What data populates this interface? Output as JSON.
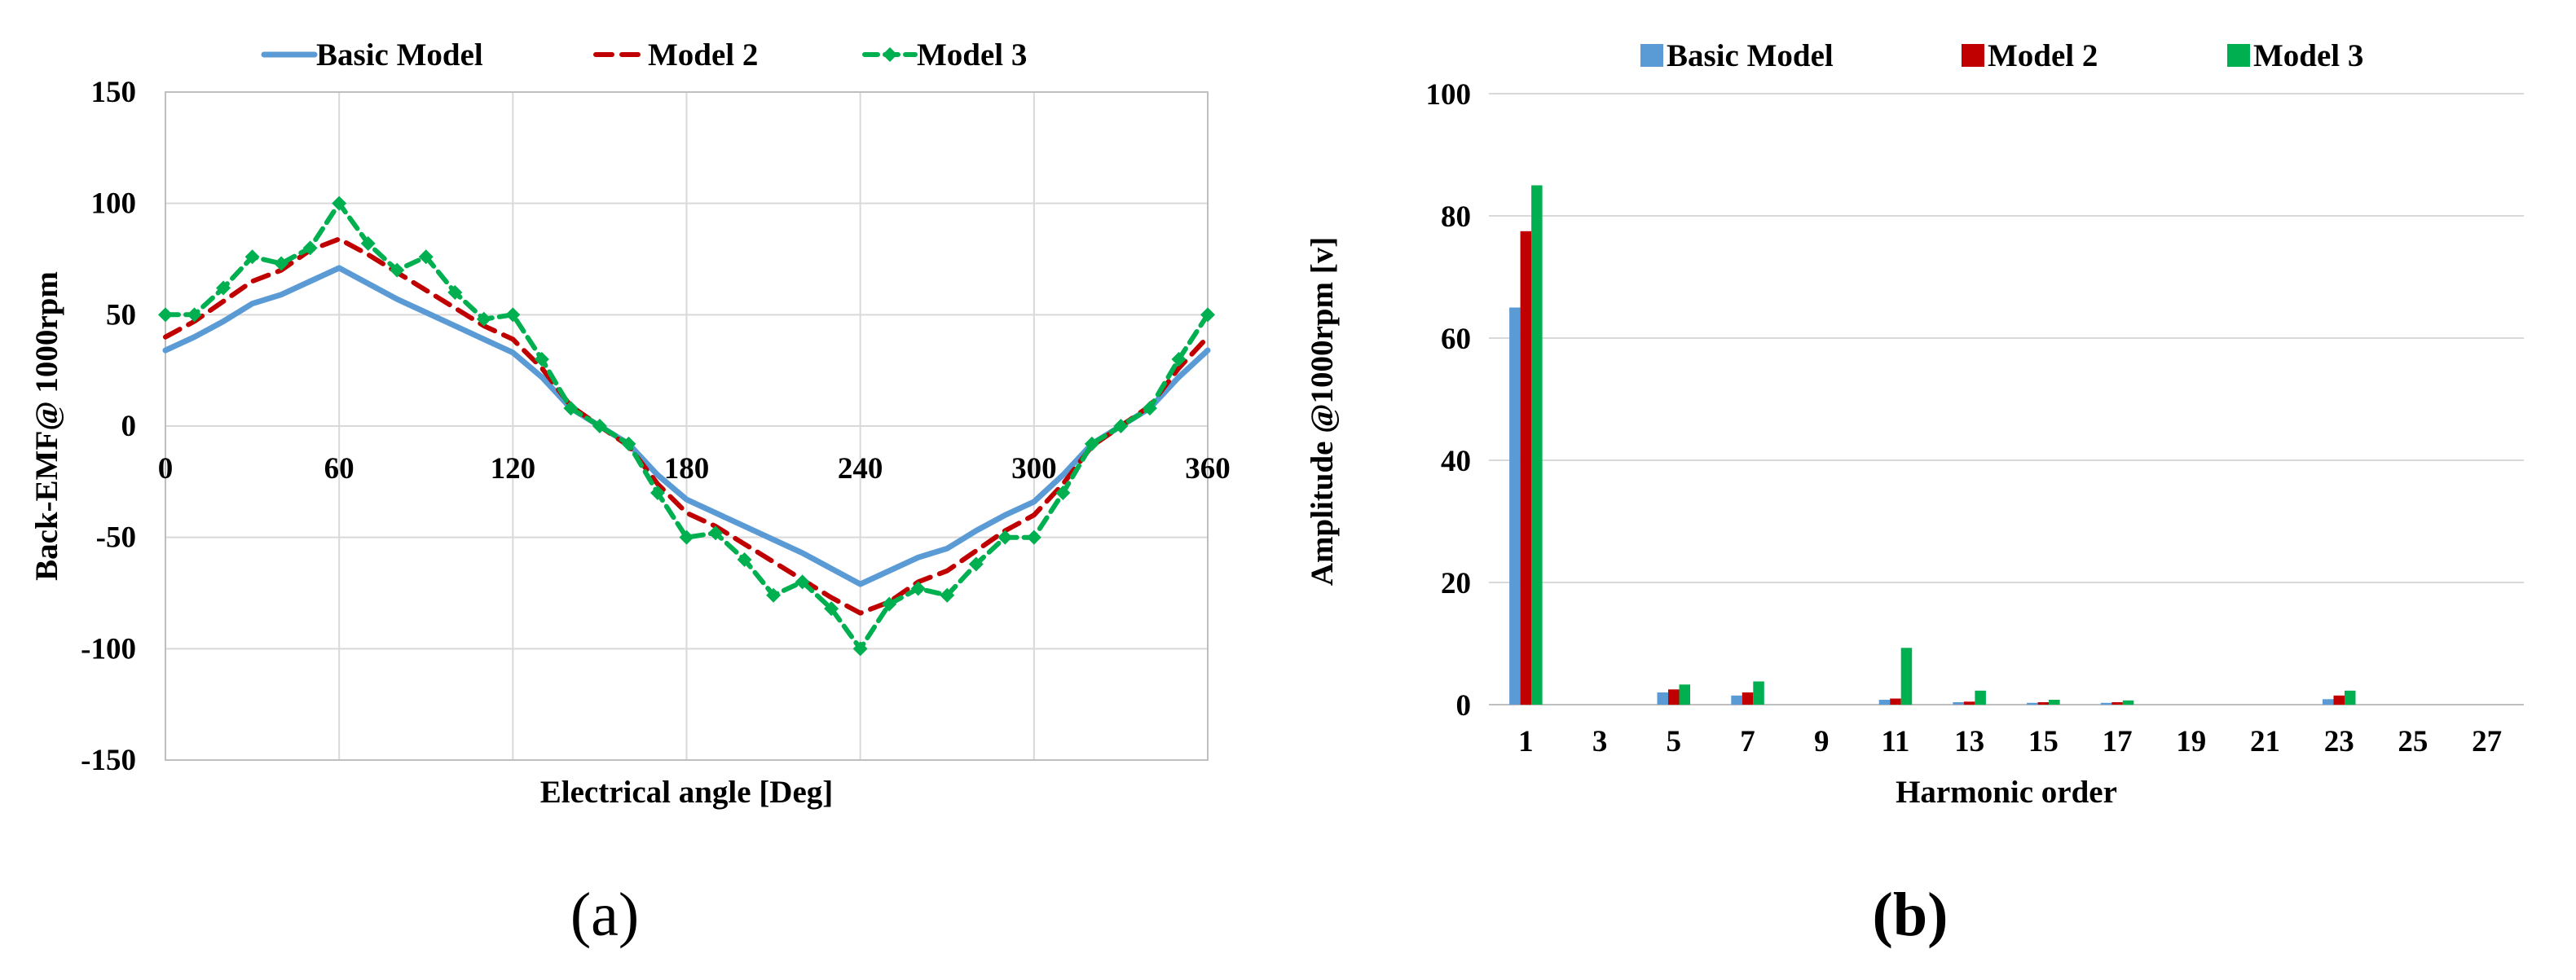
{
  "colors": {
    "basic": "#5b9bd5",
    "model2": "#c00000",
    "model3": "#00b050",
    "grid": "#d9d9d9",
    "axis": "#bfbfbf"
  },
  "chart_data": [
    {
      "type": "line",
      "panel_label": "(a)",
      "xlabel": "Electrical angle [Deg]",
      "ylabel": "Back-EMF@ 1000rpm",
      "xlim": [
        0,
        360
      ],
      "ylim": [
        -150,
        150
      ],
      "xticks": [
        0,
        60,
        120,
        180,
        240,
        300,
        360
      ],
      "yticks": [
        150,
        100,
        50,
        0,
        -50,
        -100,
        -150
      ],
      "grid": true,
      "legend_position": "top",
      "series": [
        {
          "name": "Basic Model",
          "style": "solid",
          "x": [
            0,
            10,
            20,
            30,
            40,
            50,
            60,
            70,
            80,
            90,
            100,
            110,
            120,
            130,
            140,
            150,
            160,
            170,
            180,
            190,
            200,
            210,
            220,
            230,
            240,
            250,
            260,
            270,
            280,
            290,
            300,
            310,
            320,
            330,
            340,
            350,
            360
          ],
          "y": [
            34,
            40,
            47,
            55,
            59,
            65,
            71,
            64,
            57,
            51,
            45,
            39,
            33,
            22,
            8,
            0,
            -8,
            -22,
            -33,
            -39,
            -45,
            -51,
            -57,
            -64,
            -71,
            -65,
            -59,
            -55,
            -47,
            -40,
            -34,
            -22,
            -8,
            0,
            8,
            22,
            34
          ]
        },
        {
          "name": "Model 2",
          "style": "dashed",
          "x": [
            0,
            10,
            20,
            30,
            40,
            50,
            60,
            70,
            80,
            90,
            100,
            110,
            120,
            130,
            140,
            150,
            160,
            170,
            180,
            190,
            200,
            210,
            220,
            230,
            240,
            250,
            260,
            270,
            280,
            290,
            300,
            310,
            320,
            330,
            340,
            350,
            360
          ],
          "y": [
            40,
            47,
            56,
            65,
            70,
            79,
            84,
            77,
            69,
            61,
            53,
            45,
            39,
            26,
            9,
            0,
            -9,
            -26,
            -39,
            -45,
            -53,
            -61,
            -69,
            -77,
            -84,
            -79,
            -70,
            -65,
            -56,
            -47,
            -40,
            -26,
            -9,
            0,
            9,
            26,
            40
          ]
        },
        {
          "name": "Model 3",
          "style": "dash-dot-markers",
          "x": [
            0,
            10,
            20,
            30,
            40,
            50,
            60,
            70,
            80,
            90,
            100,
            110,
            120,
            130,
            140,
            150,
            160,
            170,
            180,
            190,
            200,
            210,
            220,
            230,
            240,
            250,
            260,
            270,
            280,
            290,
            300,
            310,
            320,
            330,
            340,
            350,
            360
          ],
          "y": [
            50,
            50,
            62,
            76,
            73,
            80,
            100,
            82,
            70,
            76,
            60,
            48,
            50,
            30,
            8,
            0,
            -8,
            -30,
            -50,
            -48,
            -60,
            -76,
            -70,
            -82,
            -100,
            -80,
            -73,
            -76,
            -62,
            -50,
            -50,
            -30,
            -8,
            0,
            8,
            30,
            50
          ]
        }
      ]
    },
    {
      "type": "bar",
      "panel_label": "(b)",
      "xlabel": "Harmonic order",
      "ylabel": "Amplitude @1000rpm [v]",
      "ylim": [
        0,
        100
      ],
      "yticks": [
        0,
        20,
        40,
        60,
        80,
        100
      ],
      "grid": true,
      "legend_position": "top",
      "categories": [
        "1",
        "3",
        "5",
        "7",
        "9",
        "11",
        "13",
        "15",
        "17",
        "19",
        "21",
        "23",
        "25",
        "27"
      ],
      "series": [
        {
          "name": "Basic Model",
          "values": [
            65,
            0,
            2,
            1.5,
            0,
            0.8,
            0.4,
            0.3,
            0.3,
            0,
            0,
            0.9,
            0,
            0
          ]
        },
        {
          "name": "Model 2",
          "values": [
            77.5,
            0,
            2.5,
            2,
            0,
            1,
            0.5,
            0.4,
            0.4,
            0,
            0,
            1.5,
            0,
            0
          ]
        },
        {
          "name": "Model 3",
          "values": [
            85,
            0,
            3.3,
            3.8,
            0,
            9.3,
            2.3,
            0.8,
            0.7,
            0,
            0,
            2.3,
            0,
            0
          ]
        }
      ]
    }
  ]
}
